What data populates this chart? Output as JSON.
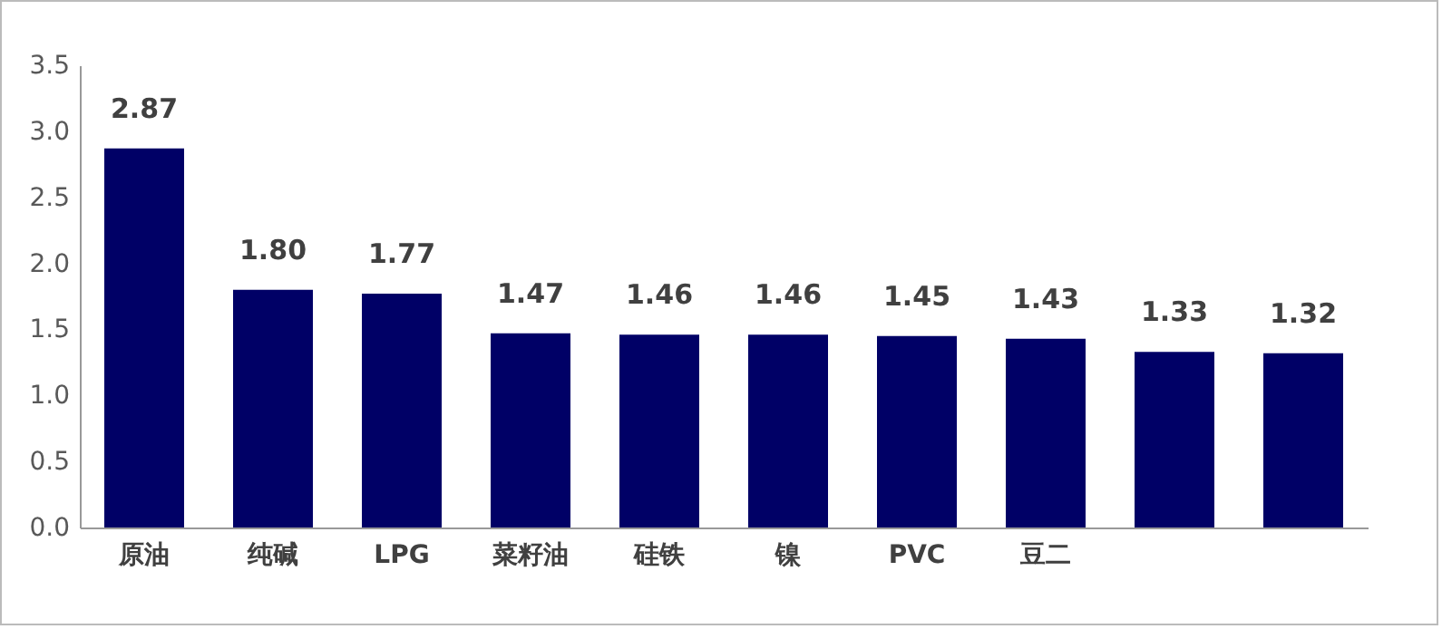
{
  "chart_data": {
    "type": "bar",
    "categories": [
      "原油",
      "纯碱",
      "LPG",
      "菜籽油",
      "硅铁",
      "镍",
      "PVC",
      "豆二",
      null,
      null
    ],
    "values": [
      2.87,
      1.8,
      1.77,
      1.47,
      1.46,
      1.46,
      1.45,
      1.43,
      1.33,
      1.32
    ],
    "value_labels": [
      "2.87",
      "1.80",
      "1.77",
      "1.47",
      "1.46",
      "1.46",
      "1.45",
      "1.43",
      "1.33",
      "1.32"
    ],
    "color": "#000066",
    "ylim": [
      0,
      3.5
    ],
    "yticks": [
      {
        "value": 0,
        "label": "0.0"
      },
      0.5,
      {
        "value": 1,
        "label": "1.0"
      },
      1.5,
      {
        "value": 2,
        "label": "2.0"
      },
      2.5,
      {
        "value": 3,
        "label": "3.0"
      },
      3.5
    ],
    "grid": false
  }
}
